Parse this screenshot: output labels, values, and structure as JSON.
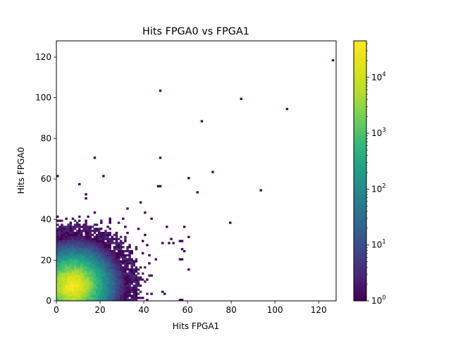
{
  "chart_data": {
    "type": "heatmap",
    "title": "Hits FPGA0 vs FPGA1",
    "xlabel": "Hits FPGA1",
    "ylabel": "Hits FPGA0",
    "xlim": [
      0,
      128
    ],
    "ylim": [
      0,
      128
    ],
    "bin_size": 1,
    "xticks": [
      0,
      20,
      40,
      60,
      80,
      100,
      120
    ],
    "yticks": [
      0,
      20,
      40,
      60,
      80,
      100,
      120
    ],
    "colorbar": {
      "scale": "log",
      "min": 1,
      "max": 45000,
      "colormap": "viridis",
      "ticks": [
        {
          "value": 1,
          "base": "10",
          "exp": "0"
        },
        {
          "value": 10,
          "base": "10",
          "exp": "1"
        },
        {
          "value": 100,
          "base": "10",
          "exp": "2"
        },
        {
          "value": 1000,
          "base": "10",
          "exp": "3"
        },
        {
          "value": 10000,
          "base": "10",
          "exp": "4"
        }
      ]
    },
    "dense_core": {
      "center": [
        7,
        7
      ],
      "peak_count": 45000,
      "spread": 3.2
    },
    "isolated_bins": [
      [
        126,
        118
      ],
      [
        47,
        103
      ],
      [
        84,
        99
      ],
      [
        105,
        94
      ],
      [
        66,
        88
      ],
      [
        47,
        70
      ],
      [
        17,
        70
      ],
      [
        71,
        63
      ],
      [
        21,
        61
      ],
      [
        0,
        61
      ],
      [
        60,
        60
      ],
      [
        93,
        54
      ],
      [
        64,
        53
      ],
      [
        10,
        57
      ],
      [
        46,
        56
      ],
      [
        47,
        56
      ],
      [
        13,
        52
      ],
      [
        13,
        50
      ],
      [
        38,
        48
      ],
      [
        32,
        45
      ],
      [
        40,
        43
      ],
      [
        17,
        43
      ],
      [
        14,
        41
      ],
      [
        0,
        41
      ],
      [
        43,
        40
      ],
      [
        24,
        40
      ],
      [
        50,
        36
      ],
      [
        58,
        36
      ],
      [
        79,
        38
      ],
      [
        37,
        35
      ],
      [
        40,
        32
      ],
      [
        60,
        31
      ],
      [
        39,
        29
      ],
      [
        51,
        28
      ],
      [
        53,
        28
      ],
      [
        48,
        28
      ],
      [
        52,
        30
      ],
      [
        56,
        29
      ],
      [
        57,
        29
      ],
      [
        57,
        25
      ],
      [
        58,
        24
      ],
      [
        48,
        4
      ],
      [
        49,
        3
      ],
      [
        36,
        9
      ],
      [
        60,
        15
      ],
      [
        57,
        20
      ],
      [
        56,
        20
      ],
      [
        41,
        10
      ],
      [
        34,
        20
      ],
      [
        34,
        24
      ],
      [
        33,
        26
      ],
      [
        32,
        33
      ],
      [
        31,
        36
      ],
      [
        30,
        40
      ],
      [
        24,
        38
      ],
      [
        23,
        36
      ],
      [
        22,
        33
      ],
      [
        28,
        30
      ],
      [
        27,
        27
      ],
      [
        26,
        24
      ],
      [
        30,
        19
      ],
      [
        31,
        16
      ],
      [
        29,
        13
      ],
      [
        33,
        13
      ],
      [
        35,
        17
      ],
      [
        35,
        14
      ],
      [
        28,
        22
      ],
      [
        25,
        20
      ],
      [
        33,
        6
      ],
      [
        37,
        5
      ],
      [
        39,
        1
      ],
      [
        37,
        1
      ],
      [
        41,
        0
      ],
      [
        31,
        0
      ],
      [
        56,
        0
      ],
      [
        57,
        0
      ],
      [
        45,
        20
      ],
      [
        42,
        22
      ],
      [
        41,
        27
      ],
      [
        42,
        18
      ]
    ]
  }
}
